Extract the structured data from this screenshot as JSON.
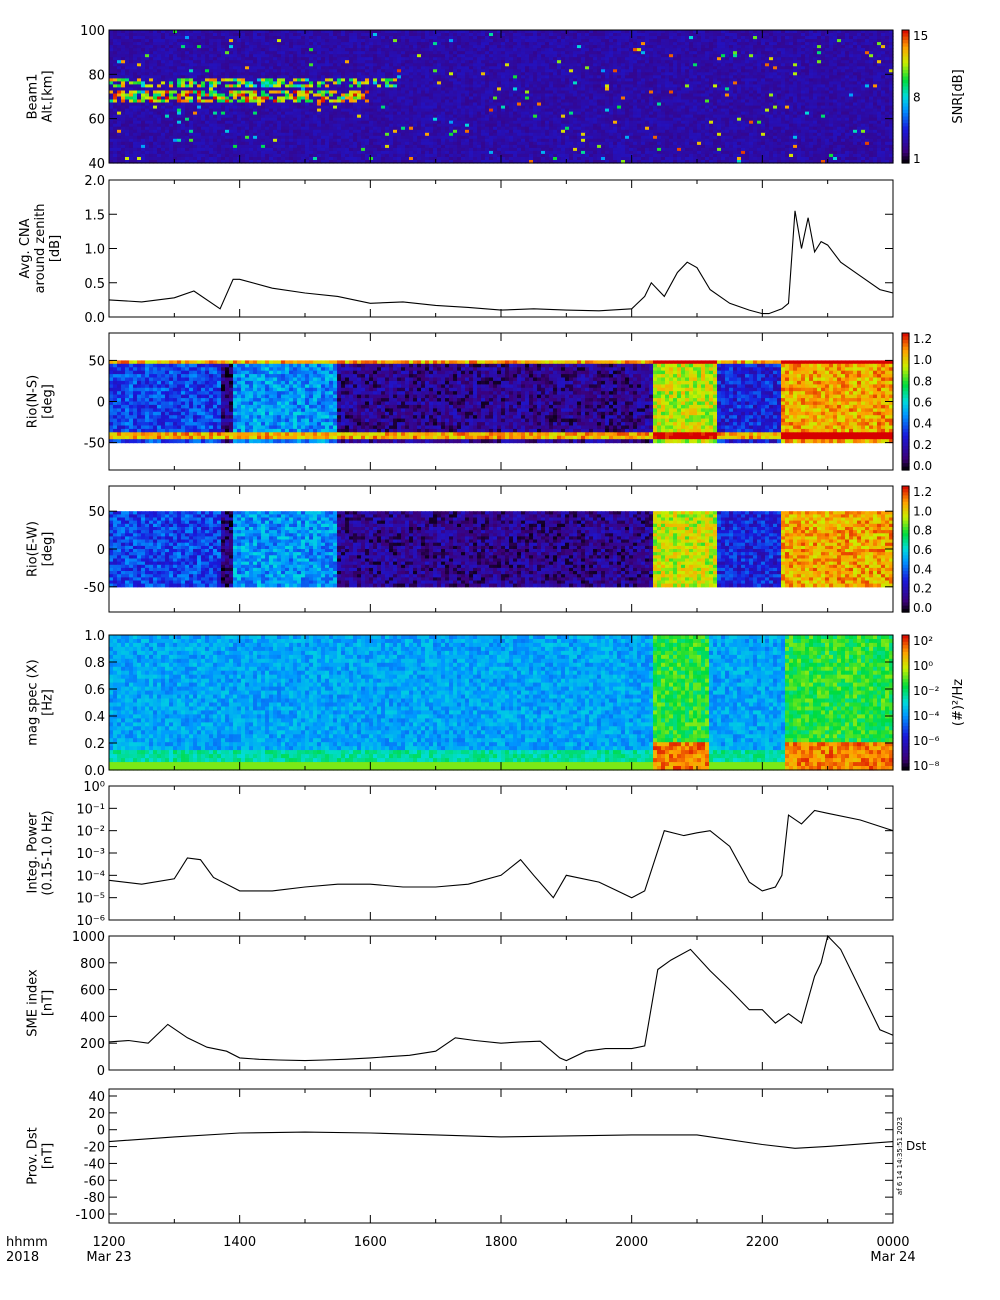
{
  "panels": [
    {
      "ylabel": [
        "Beam1",
        "Alt.[km]"
      ],
      "ticks": [
        "100",
        "80",
        "60",
        "40"
      ],
      "cbar_title": "SNR[dB]",
      "cbar_ticks": [
        "15",
        "8",
        "1"
      ]
    },
    {
      "ylabel": [
        "Avg. CNA",
        "around zenith",
        "[dB]"
      ],
      "ticks": [
        "2.0",
        "1.5",
        "1.0",
        "0.5",
        "0.0"
      ]
    },
    {
      "ylabel": [
        "Rio(N-S)",
        "[deg]"
      ],
      "ticks": [
        "50",
        "0",
        "-50"
      ],
      "cbar_ticks": [
        "1.2",
        "1.0",
        "0.8",
        "0.6",
        "0.4",
        "0.2",
        "0.0"
      ]
    },
    {
      "ylabel": [
        "Rio(E-W)",
        "[deg]"
      ],
      "ticks": [
        "50",
        "0",
        "-50"
      ],
      "cbar_ticks": [
        "1.2",
        "1.0",
        "0.8",
        "0.6",
        "0.4",
        "0.2",
        "0.0"
      ]
    },
    {
      "ylabel": [
        "mag spec (X)",
        "[Hz]"
      ],
      "ticks": [
        "1.0",
        "0.8",
        "0.6",
        "0.4",
        "0.2",
        "0.0"
      ],
      "cbar_title": "(#)²/Hz",
      "cbar_ticks": [
        "10²",
        "10⁰",
        "10⁻²",
        "10⁻⁴",
        "10⁻⁶",
        "10⁻⁸"
      ]
    },
    {
      "ylabel": [
        "Integ. Power",
        "(0.15-1.0 Hz)"
      ],
      "ticks": [
        "10⁰",
        "10⁻¹",
        "10⁻²",
        "10⁻³",
        "10⁻⁴",
        "10⁻⁵",
        "10⁻⁶"
      ]
    },
    {
      "ylabel": [
        "SME index",
        "[nT]"
      ],
      "ticks": [
        "1000",
        "800",
        "600",
        "400",
        "200",
        "0"
      ]
    },
    {
      "ylabel": [
        "Prov. Dst",
        "[nT]"
      ],
      "ticks": [
        "40",
        "20",
        "0",
        "-20",
        "-40",
        "-60",
        "-80",
        "-100"
      ],
      "right_label": "Dst",
      "stamp": "af  6 14 14:35:51 2023"
    }
  ],
  "xaxis": {
    "corner": [
      "hhmm",
      "2018"
    ],
    "ticks": [
      "1200",
      "1400",
      "1600",
      "1800",
      "2000",
      "2200",
      "0000"
    ],
    "dates": [
      "Mar 23",
      "Mar 24"
    ]
  },
  "chart_data": {
    "type": "line",
    "x_range": [
      "2018-03-23 12:00",
      "2018-03-24 00:00"
    ],
    "panels": [
      {
        "kind": "heatmap",
        "quantity": "SNR",
        "ylim": [
          40,
          100
        ],
        "clim": [
          1,
          15
        ]
      },
      {
        "kind": "line",
        "quantity": "Avg. CNA",
        "ylim": [
          0,
          2.0
        ],
        "x": [
          12.0,
          12.5,
          13.0,
          13.3,
          13.7,
          13.9,
          14.0,
          14.5,
          15.0,
          15.5,
          16.0,
          16.5,
          17.0,
          17.5,
          18.0,
          18.5,
          19.0,
          19.5,
          20.0,
          20.2,
          20.3,
          20.5,
          20.7,
          20.85,
          21.0,
          21.2,
          21.5,
          21.8,
          22.0,
          22.1,
          22.3,
          22.4,
          22.5,
          22.6,
          22.7,
          22.8,
          22.9,
          23.0,
          23.2,
          23.5,
          23.8,
          24.0
        ],
        "y": [
          0.25,
          0.22,
          0.28,
          0.38,
          0.12,
          0.55,
          0.55,
          0.42,
          0.35,
          0.3,
          0.2,
          0.22,
          0.17,
          0.14,
          0.1,
          0.12,
          0.1,
          0.09,
          0.12,
          0.3,
          0.5,
          0.3,
          0.65,
          0.8,
          0.72,
          0.4,
          0.2,
          0.1,
          0.05,
          0.05,
          0.12,
          0.2,
          1.55,
          1.0,
          1.45,
          0.95,
          1.1,
          1.05,
          0.8,
          0.6,
          0.4,
          0.35
        ]
      },
      {
        "kind": "heatmap",
        "quantity": "Rio(N-S)",
        "ylim": [
          -90,
          90
        ],
        "clim": [
          0,
          1.3
        ]
      },
      {
        "kind": "heatmap",
        "quantity": "Rio(E-W)",
        "ylim": [
          -90,
          90
        ],
        "clim": [
          0,
          1.3
        ]
      },
      {
        "kind": "heatmap",
        "quantity": "mag spec (X)",
        "ylim": [
          0,
          1.0
        ],
        "clim": [
          1e-09,
          100
        ]
      },
      {
        "kind": "line",
        "quantity": "Integ. Power",
        "scale": "log",
        "ylim": [
          1e-06,
          1
        ],
        "x": [
          12.0,
          12.5,
          13.0,
          13.2,
          13.4,
          13.6,
          14.0,
          14.5,
          15.0,
          15.5,
          16.0,
          16.5,
          17.0,
          17.5,
          18.0,
          18.3,
          18.5,
          18.8,
          19.0,
          19.5,
          20.0,
          20.2,
          20.5,
          20.8,
          21.0,
          21.2,
          21.5,
          21.8,
          22.0,
          22.2,
          22.3,
          22.4,
          22.6,
          22.8,
          23.0,
          23.5,
          24.0
        ],
        "y": [
          6e-05,
          4e-05,
          7e-05,
          0.0006,
          0.0005,
          8e-05,
          2e-05,
          2e-05,
          3e-05,
          4e-05,
          4e-05,
          3e-05,
          3e-05,
          4e-05,
          0.0001,
          0.0005,
          0.0001,
          1e-05,
          0.0001,
          5e-05,
          1e-05,
          2e-05,
          0.01,
          0.006,
          0.008,
          0.01,
          0.002,
          5e-05,
          2e-05,
          3e-05,
          0.0001,
          0.05,
          0.02,
          0.08,
          0.06,
          0.03,
          0.01
        ]
      },
      {
        "kind": "line",
        "quantity": "SME index",
        "ylim": [
          0,
          1000
        ],
        "x": [
          12.0,
          12.3,
          12.6,
          12.9,
          13.2,
          13.5,
          13.8,
          14.0,
          14.3,
          14.6,
          15.0,
          15.3,
          15.6,
          16.0,
          16.3,
          16.6,
          17.0,
          17.3,
          17.6,
          18.0,
          18.3,
          18.6,
          18.9,
          19.0,
          19.3,
          19.6,
          20.0,
          20.2,
          20.4,
          20.6,
          20.9,
          21.2,
          21.5,
          21.8,
          22.0,
          22.2,
          22.4,
          22.6,
          22.8,
          22.9,
          23.0,
          23.2,
          23.5,
          23.8,
          24.0
        ],
        "y": [
          210,
          220,
          200,
          340,
          240,
          170,
          140,
          90,
          80,
          75,
          70,
          75,
          80,
          90,
          100,
          110,
          140,
          240,
          220,
          200,
          210,
          215,
          90,
          70,
          140,
          160,
          160,
          180,
          750,
          820,
          900,
          740,
          600,
          450,
          450,
          350,
          420,
          350,
          700,
          800,
          1000,
          900,
          600,
          300,
          260
        ]
      },
      {
        "kind": "line",
        "quantity": "Prov. Dst",
        "ylim": [
          -100,
          40
        ],
        "x": [
          12,
          13,
          14,
          15,
          16,
          17,
          18,
          19,
          20,
          21,
          22,
          22.5,
          23,
          24
        ],
        "y": [
          -15,
          -10,
          -6,
          -5,
          -6,
          -8,
          -10,
          -9,
          -8,
          -8,
          -18,
          -22,
          -20,
          -15
        ]
      }
    ]
  },
  "colors": {
    "line": "#000000",
    "axis": "#000000",
    "background": "#ffffff"
  }
}
